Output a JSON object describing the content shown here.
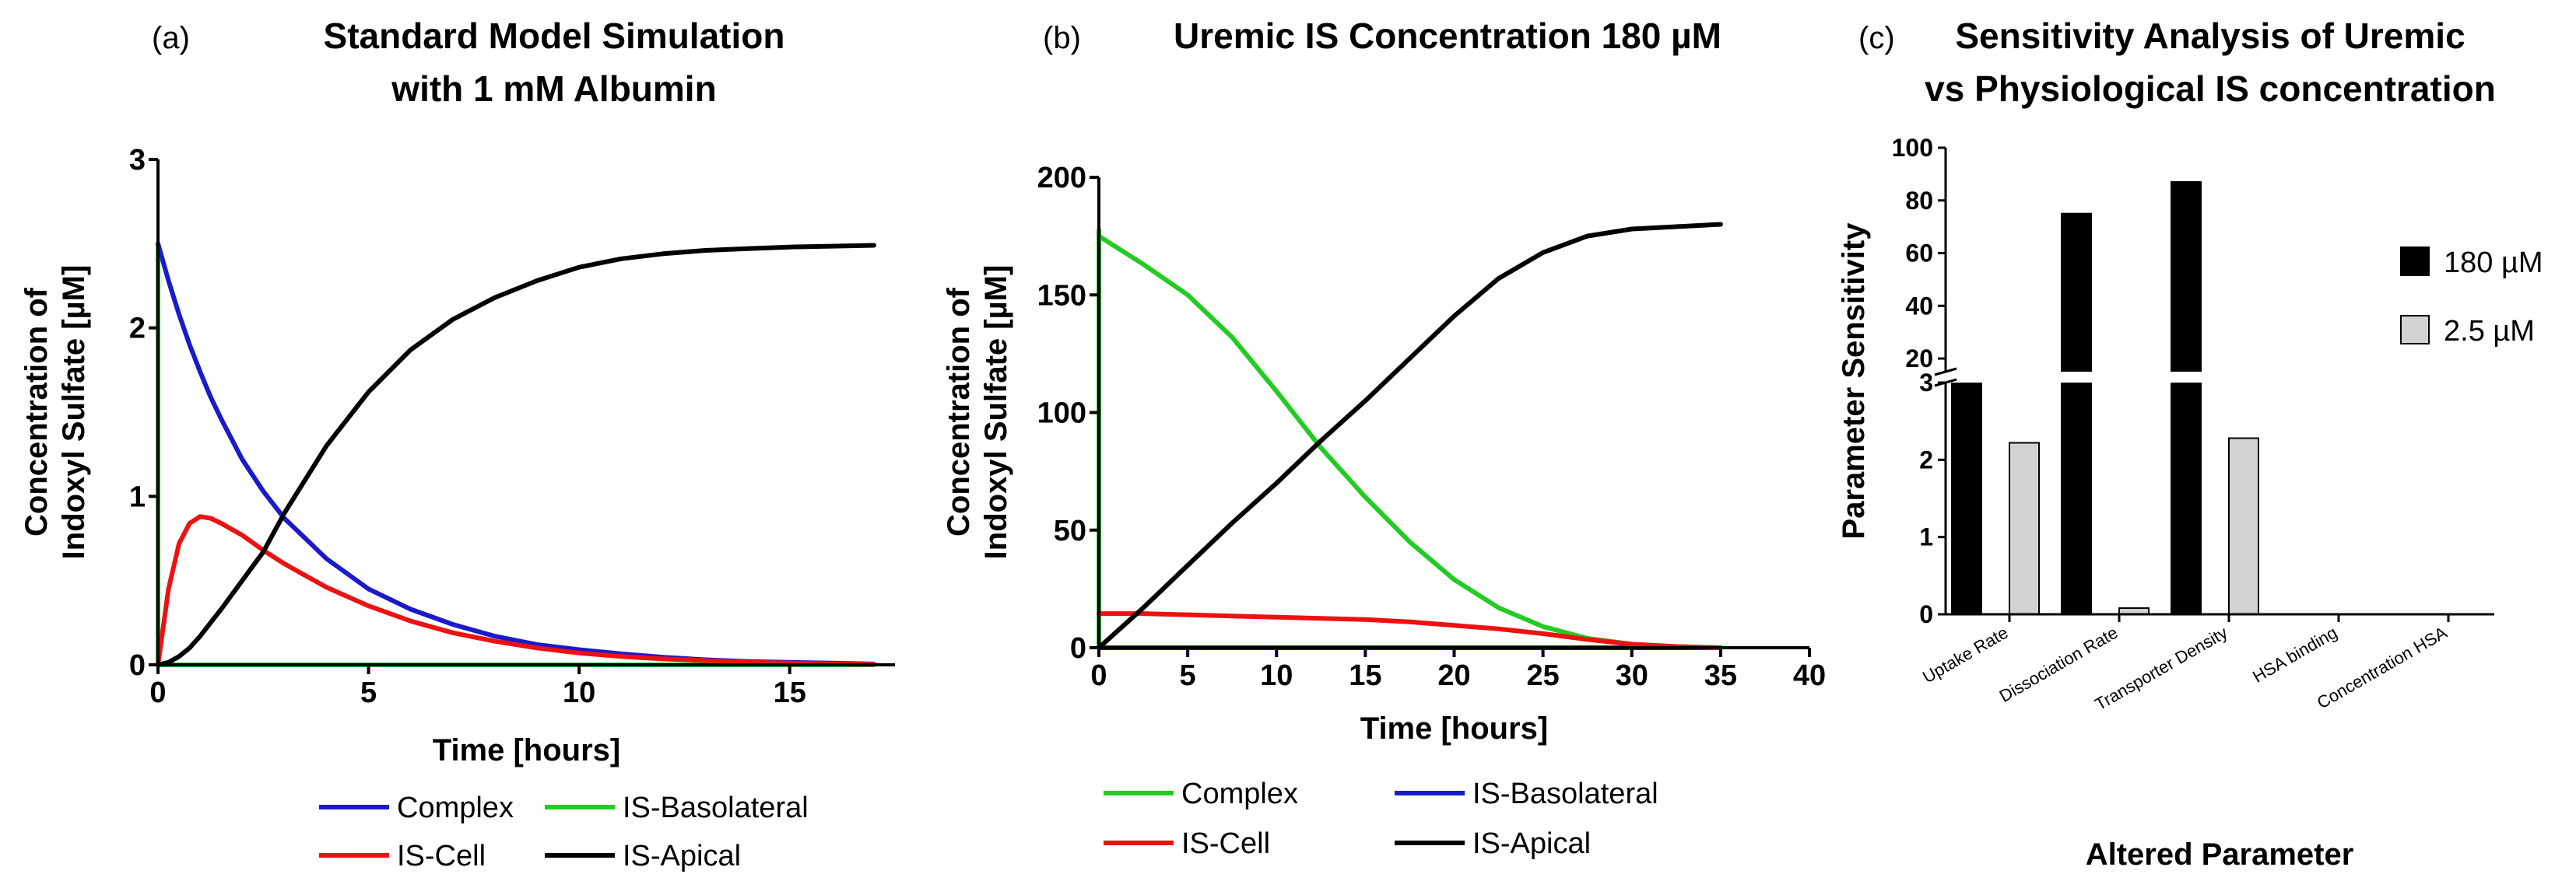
{
  "panels": [
    {
      "label": "(a)",
      "title_lines": [
        "Standard Model Simulation",
        "with 1 mM Albumin"
      ]
    },
    {
      "label": "(b)",
      "title_lines": [
        "Uremic IS Concentration 180 µM"
      ]
    },
    {
      "label": "(c)",
      "title_lines": [
        "Sensitivity Analysis of Uremic",
        "vs Physiological IS concentration"
      ]
    }
  ],
  "chart_data": [
    {
      "type": "line",
      "title": "Standard Model Simulation with 1 mM Albumin",
      "xlabel": "Time [hours]",
      "ylabel_lines": [
        "Concentration of",
        "Indoxyl Sulfate [µM]"
      ],
      "xlim": [
        0,
        17.5
      ],
      "ylim": [
        0,
        3
      ],
      "xticks": [
        0,
        5,
        10,
        15
      ],
      "yticks": [
        0,
        1,
        2,
        3
      ],
      "grid": false,
      "legend_position": "bottom",
      "x": [
        0,
        0.25,
        0.5,
        0.75,
        1,
        1.25,
        1.5,
        2,
        2.5,
        3,
        4,
        5,
        6,
        7,
        8,
        9,
        10,
        11,
        12,
        13,
        14,
        15,
        16,
        17
      ],
      "series": [
        {
          "name": "Complex",
          "color": "#1a1acc",
          "values": [
            2.5,
            2.28,
            2.08,
            1.9,
            1.74,
            1.59,
            1.46,
            1.22,
            1.03,
            0.87,
            0.63,
            0.45,
            0.33,
            0.24,
            0.17,
            0.12,
            0.09,
            0.065,
            0.045,
            0.03,
            0.02,
            0.015,
            0.01,
            0.005
          ]
        },
        {
          "name": "IS-Basolateral",
          "color": "#22cc22",
          "vertical_segment_at_x0": [
            0,
            2.5
          ],
          "values": [
            0,
            0,
            0,
            0,
            0,
            0,
            0,
            0,
            0,
            0,
            0,
            0,
            0,
            0,
            0,
            0,
            0,
            0,
            0,
            0,
            0,
            0,
            0,
            0
          ]
        },
        {
          "name": "IS-Cell",
          "color": "#ee1111",
          "values": [
            0,
            0.45,
            0.72,
            0.84,
            0.88,
            0.87,
            0.84,
            0.77,
            0.68,
            0.6,
            0.46,
            0.35,
            0.26,
            0.19,
            0.14,
            0.1,
            0.07,
            0.05,
            0.035,
            0.025,
            0.015,
            0.01,
            0.006,
            0.003
          ]
        },
        {
          "name": "IS-Apical",
          "color": "#000000",
          "values": [
            0,
            0.015,
            0.05,
            0.1,
            0.17,
            0.25,
            0.33,
            0.5,
            0.67,
            0.9,
            1.3,
            1.62,
            1.87,
            2.05,
            2.18,
            2.28,
            2.36,
            2.41,
            2.44,
            2.46,
            2.47,
            2.48,
            2.485,
            2.49
          ]
        }
      ]
    },
    {
      "type": "line",
      "title": "Uremic IS Concentration 180 µM",
      "xlabel": "Time [hours]",
      "ylabel_lines": [
        "Concentration of",
        "Indoxyl Sulfate [µM]"
      ],
      "xlim": [
        0,
        40
      ],
      "ylim": [
        0,
        200
      ],
      "xticks": [
        0,
        5,
        10,
        15,
        20,
        25,
        30,
        35,
        40
      ],
      "yticks": [
        0,
        50,
        100,
        150,
        200
      ],
      "grid": false,
      "legend_position": "bottom",
      "x": [
        0,
        2.5,
        5,
        7.5,
        10,
        12.5,
        15,
        17.5,
        20,
        22.5,
        25,
        27.5,
        30,
        32.5,
        35
      ],
      "series": [
        {
          "name": "Complex",
          "color": "#22cc22",
          "vertical_segment_at_x0": [
            0,
            178
          ],
          "values": [
            175,
            163,
            150,
            132,
            109,
            85,
            64,
            45,
            29,
            17,
            9,
            4,
            1.5,
            0.5,
            0
          ]
        },
        {
          "name": "IS-Basolateral",
          "color": "#1a1acc",
          "values": [
            0,
            0,
            0,
            0,
            0,
            0,
            0,
            0,
            0,
            0,
            0,
            0,
            0,
            0,
            0
          ]
        },
        {
          "name": "IS-Cell",
          "color": "#ee1111",
          "values": [
            14.5,
            14.5,
            14,
            13.5,
            13,
            12.5,
            12,
            11,
            9.5,
            8,
            6,
            3.5,
            1.5,
            0.5,
            0
          ]
        },
        {
          "name": "IS-Apical",
          "color": "#000000",
          "values": [
            0,
            17,
            35,
            53,
            70,
            88,
            105,
            123,
            141,
            157,
            168,
            175,
            178,
            179,
            180
          ]
        }
      ]
    },
    {
      "type": "bar",
      "title": "Sensitivity Analysis of Uremic vs Physiological IS concentration",
      "xlabel": "Altered Parameter",
      "ylabel": "Parameter Sensitivity",
      "y_axis_broken": true,
      "ylim_lower": [
        0,
        3
      ],
      "ylim_upper": [
        15,
        100
      ],
      "yticks_lower": [
        0,
        1,
        2,
        3
      ],
      "yticks_upper": [
        20,
        40,
        60,
        80,
        100
      ],
      "grid": false,
      "legend_position": "right",
      "categories": [
        "Uptake Rate",
        "Dissociation Rate",
        "Transporter Density",
        "HSA binding",
        "Concentration HSA"
      ],
      "series": [
        {
          "name": "180 µM",
          "color": "#000000",
          "values": [
            15,
            75,
            87,
            0,
            0
          ]
        },
        {
          "name": "2.5 µM",
          "color": "#d3d3d3",
          "values": [
            2.22,
            0.08,
            2.28,
            0,
            0
          ]
        }
      ]
    }
  ]
}
